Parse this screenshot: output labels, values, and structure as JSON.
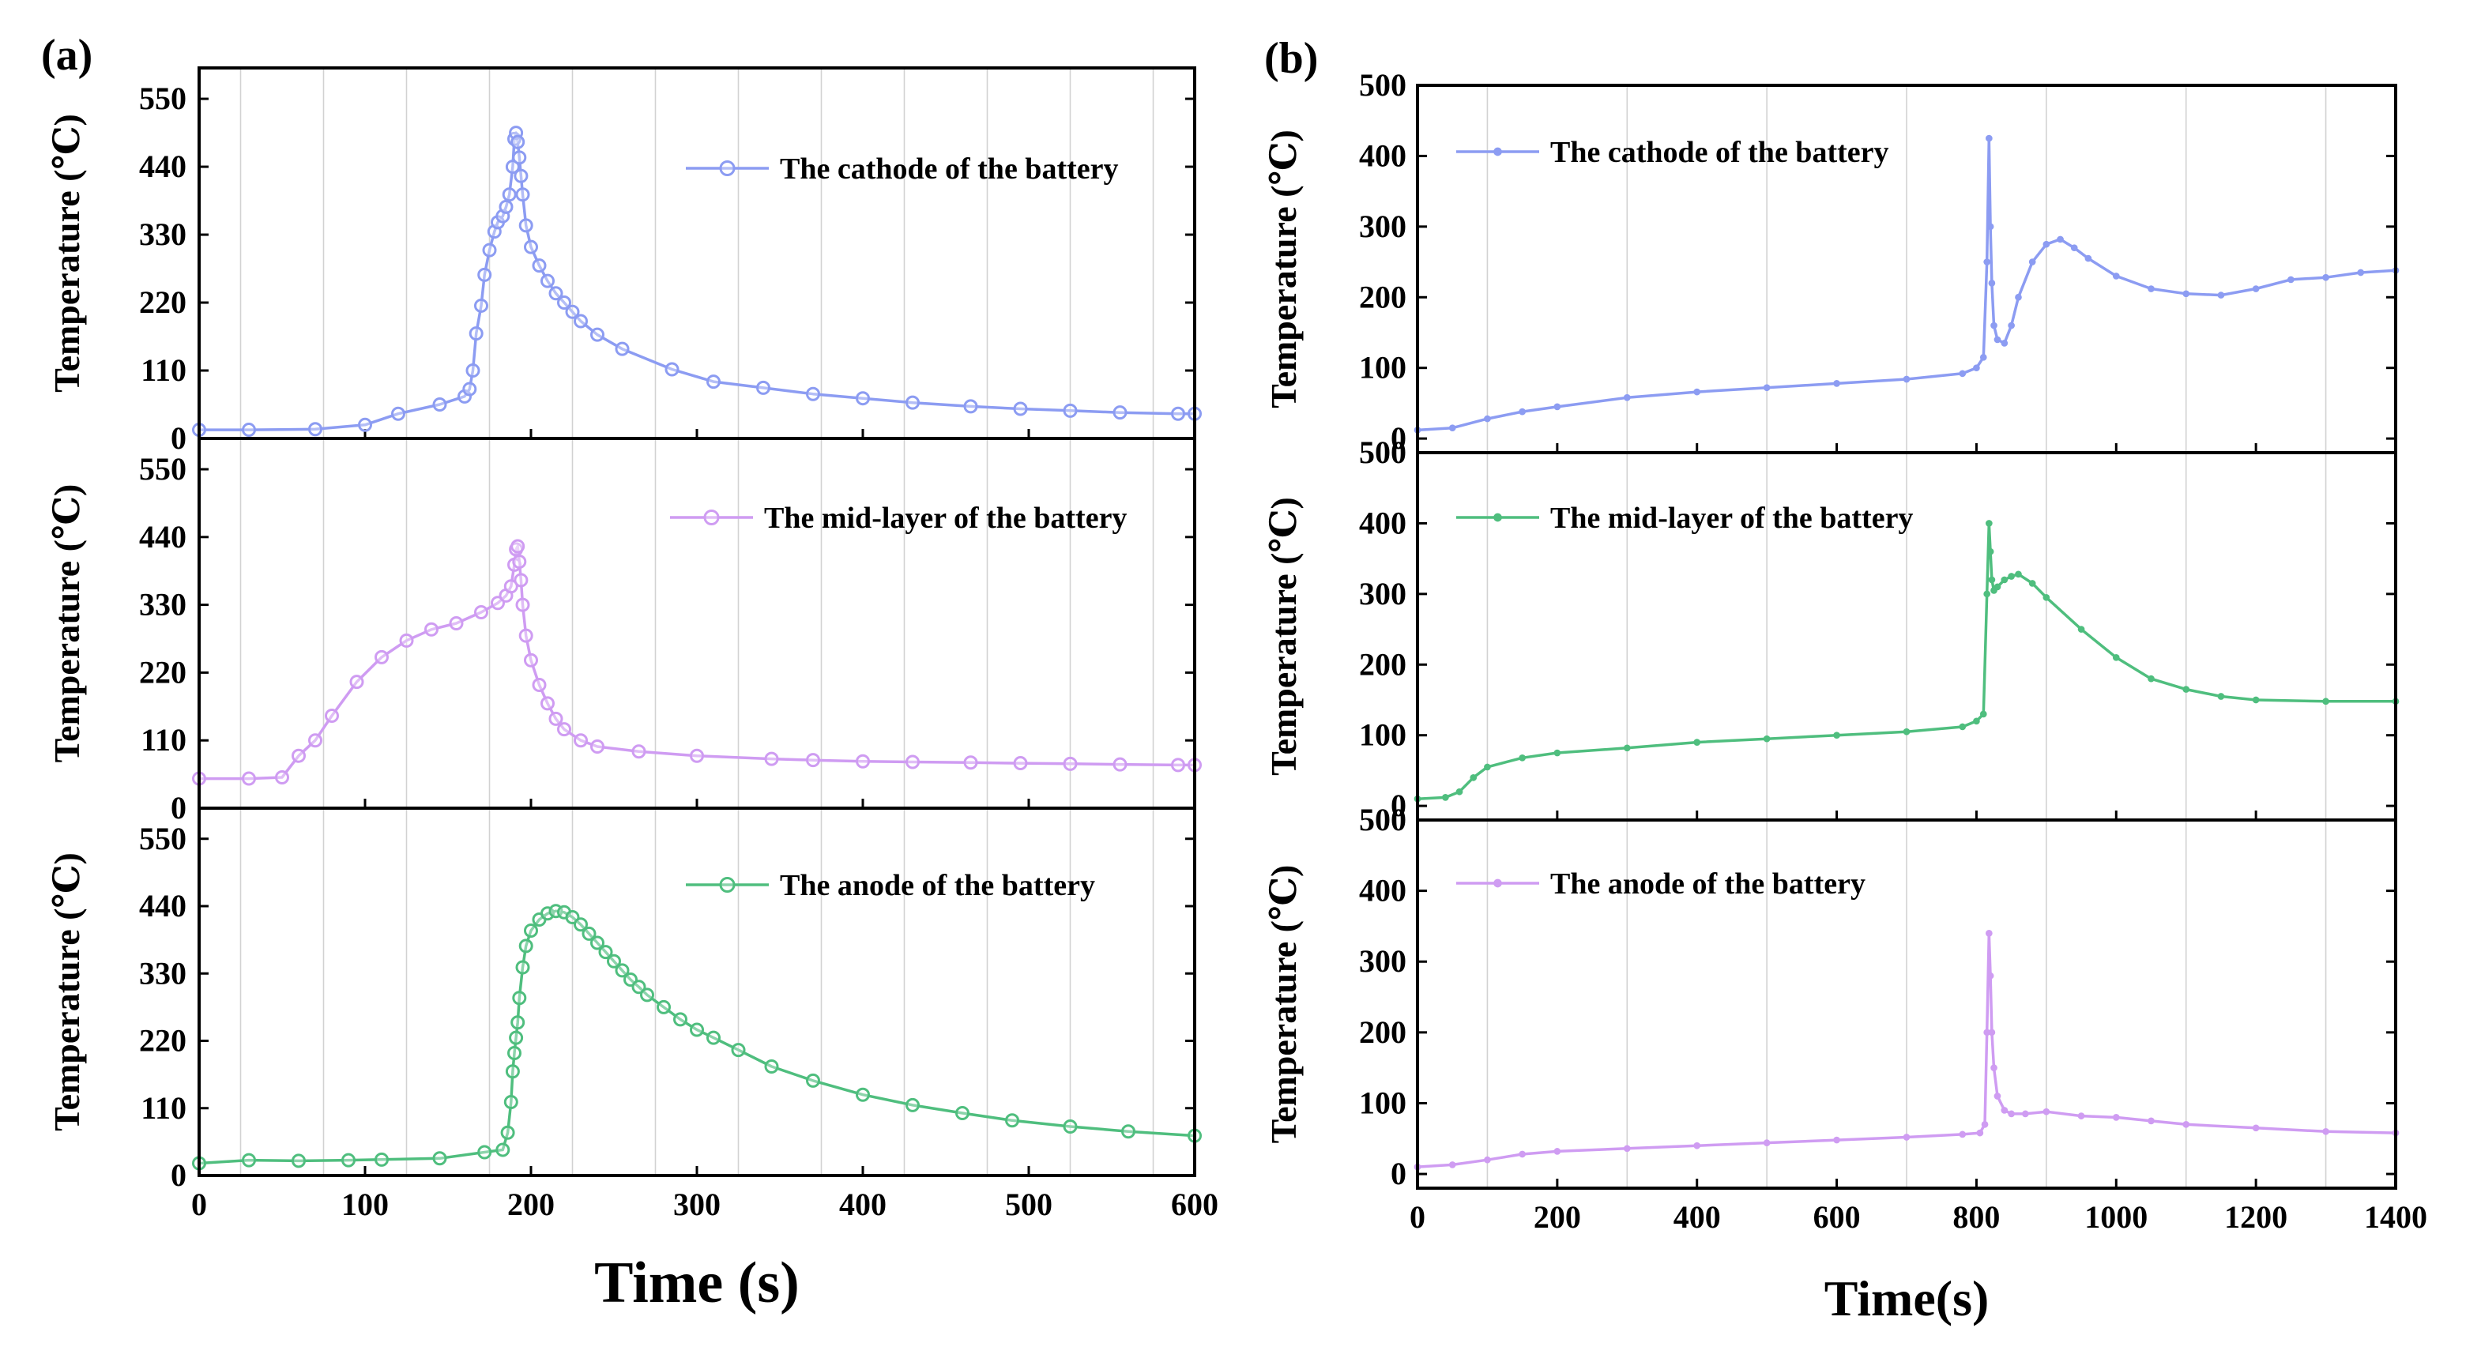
{
  "colors": {
    "blue": "#8c9cf2",
    "violet": "#cf9cf2",
    "green": "#4fbe7e",
    "axis": "#000000",
    "grid": "#d2d2d2"
  },
  "chart_data": [
    {
      "panel": "(a)",
      "type": "line",
      "xlabel": "Time (s)",
      "xlim": [
        0,
        600
      ],
      "xticks": [
        0,
        100,
        200,
        300,
        400,
        500,
        600
      ],
      "subplots": [
        {
          "ylabel": "Temperature (℃)",
          "ylim": [
            0,
            600
          ],
          "yticks": [
            0,
            110,
            220,
            330,
            440,
            550
          ],
          "series": [
            {
              "name": "The  cathode of the battery",
              "color": "#8c9cf2",
              "x": [
                0,
                30,
                70,
                100,
                120,
                145,
                160,
                163,
                165,
                167,
                170,
                172,
                175,
                178,
                180,
                183,
                185,
                187,
                189,
                190,
                191,
                192,
                193,
                194,
                195,
                197,
                200,
                205,
                210,
                215,
                220,
                225,
                230,
                240,
                255,
                285,
                310,
                340,
                370,
                400,
                430,
                465,
                495,
                525,
                555,
                590,
                600
              ],
              "y": [
                14,
                14,
                15,
                22,
                40,
                55,
                68,
                80,
                110,
                170,
                215,
                265,
                305,
                335,
                350,
                360,
                375,
                395,
                440,
                485,
                495,
                480,
                455,
                425,
                395,
                345,
                310,
                280,
                255,
                235,
                220,
                205,
                190,
                168,
                145,
                112,
                92,
                82,
                72,
                65,
                58,
                52,
                48,
                45,
                42,
                40,
                40
              ]
            }
          ]
        },
        {
          "ylabel": "Temperature (℃)",
          "ylim": [
            0,
            600
          ],
          "yticks": [
            0,
            110,
            220,
            330,
            440,
            550
          ],
          "series": [
            {
              "name": "The mid-layer of the battery",
              "color": "#cf9cf2",
              "x": [
                0,
                30,
                50,
                60,
                70,
                80,
                95,
                110,
                125,
                140,
                155,
                170,
                180,
                185,
                188,
                190,
                191,
                192,
                193,
                194,
                195,
                197,
                200,
                205,
                210,
                215,
                220,
                230,
                240,
                265,
                300,
                345,
                370,
                400,
                430,
                465,
                495,
                525,
                555,
                590,
                600
              ],
              "y": [
                48,
                48,
                50,
                85,
                110,
                150,
                205,
                245,
                272,
                290,
                300,
                318,
                333,
                345,
                360,
                395,
                420,
                425,
                400,
                370,
                330,
                280,
                240,
                200,
                170,
                145,
                128,
                110,
                100,
                92,
                85,
                80,
                78,
                76,
                75,
                74,
                73,
                72,
                71,
                70,
                70
              ]
            }
          ]
        },
        {
          "ylabel": "Temperature (℃)",
          "ylim": [
            0,
            600
          ],
          "yticks": [
            0,
            110,
            220,
            330,
            440,
            550
          ],
          "series": [
            {
              "name": "The anode of the battery",
              "color": "#4fbe7e",
              "x": [
                0,
                30,
                60,
                90,
                110,
                145,
                172,
                183,
                186,
                188,
                189,
                190,
                191,
                192,
                193,
                195,
                197,
                200,
                205,
                210,
                215,
                220,
                225,
                230,
                235,
                240,
                245,
                250,
                255,
                260,
                265,
                270,
                280,
                290,
                300,
                310,
                325,
                345,
                370,
                400,
                430,
                460,
                490,
                525,
                560,
                600
              ],
              "y": [
                20,
                25,
                24,
                25,
                26,
                28,
                38,
                42,
                70,
                120,
                170,
                200,
                225,
                250,
                290,
                340,
                375,
                400,
                418,
                428,
                432,
                430,
                422,
                410,
                395,
                380,
                365,
                350,
                335,
                320,
                308,
                295,
                275,
                255,
                238,
                225,
                205,
                178,
                155,
                132,
                115,
                102,
                90,
                80,
                72,
                65
              ]
            }
          ]
        }
      ]
    },
    {
      "panel": "(b)",
      "type": "line",
      "xlabel": "Time(s)",
      "xlim": [
        0,
        1400
      ],
      "xticks": [
        0,
        200,
        400,
        600,
        800,
        1000,
        1200,
        1400
      ],
      "subplots": [
        {
          "ylabel": "Temperature (℃)",
          "ylim": [
            -20,
            500
          ],
          "yticks": [
            0,
            100,
            200,
            300,
            400,
            500
          ],
          "series": [
            {
              "name": "The cathode of the battery",
              "color": "#8c9cf2",
              "x": [
                0,
                50,
                100,
                150,
                200,
                300,
                400,
                500,
                600,
                700,
                780,
                800,
                810,
                815,
                818,
                820,
                822,
                825,
                830,
                840,
                850,
                860,
                880,
                900,
                920,
                940,
                960,
                1000,
                1050,
                1100,
                1150,
                1200,
                1250,
                1300,
                1350,
                1400
              ],
              "y": [
                12,
                15,
                28,
                38,
                45,
                58,
                66,
                72,
                78,
                84,
                92,
                100,
                115,
                250,
                425,
                300,
                220,
                160,
                140,
                135,
                160,
                200,
                250,
                275,
                282,
                270,
                255,
                230,
                212,
                205,
                203,
                212,
                225,
                228,
                235,
                238
              ]
            }
          ]
        },
        {
          "ylabel": "Temperature (℃)",
          "ylim": [
            -20,
            500
          ],
          "yticks": [
            0,
            100,
            200,
            300,
            400,
            500
          ],
          "series": [
            {
              "name": "The mid-layer of the battery",
              "color": "#4fbe7e",
              "x": [
                0,
                40,
                60,
                80,
                100,
                150,
                200,
                300,
                400,
                500,
                600,
                700,
                780,
                800,
                810,
                815,
                818,
                820,
                822,
                825,
                830,
                840,
                850,
                860,
                880,
                900,
                950,
                1000,
                1050,
                1100,
                1150,
                1200,
                1300,
                1400
              ],
              "y": [
                10,
                12,
                20,
                40,
                55,
                68,
                75,
                82,
                90,
                95,
                100,
                105,
                112,
                120,
                130,
                300,
                400,
                360,
                320,
                305,
                310,
                320,
                325,
                328,
                315,
                295,
                250,
                210,
                180,
                165,
                155,
                150,
                148,
                148
              ]
            }
          ]
        },
        {
          "ylabel": "Temperature (℃)",
          "ylim": [
            -20,
            500
          ],
          "yticks": [
            0,
            100,
            200,
            300,
            400,
            500
          ],
          "series": [
            {
              "name": "The anode  of the battery",
              "color": "#cf9cf2",
              "x": [
                0,
                50,
                100,
                150,
                200,
                300,
                400,
                500,
                600,
                700,
                780,
                805,
                812,
                815,
                818,
                820,
                822,
                825,
                830,
                840,
                850,
                870,
                900,
                950,
                1000,
                1050,
                1100,
                1200,
                1300,
                1400
              ],
              "y": [
                10,
                13,
                20,
                28,
                32,
                36,
                40,
                44,
                48,
                52,
                56,
                58,
                70,
                200,
                340,
                280,
                200,
                150,
                110,
                90,
                85,
                85,
                88,
                82,
                80,
                75,
                70,
                65,
                60,
                58
              ]
            }
          ]
        }
      ]
    }
  ]
}
